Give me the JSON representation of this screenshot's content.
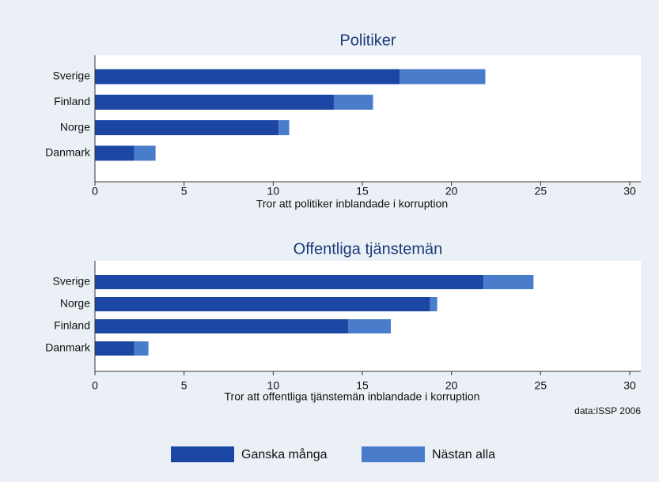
{
  "chart_data": [
    {
      "type": "bar",
      "orientation": "horizontal",
      "stacked": true,
      "title": "Politiker",
      "xlabel": "Tror att politiker inblandade i korruption",
      "categories": [
        "Sverige",
        "Finland",
        "Norge",
        "Danmark"
      ],
      "series": [
        {
          "name": "Ganska många",
          "color": "#1c46a3",
          "values": [
            17.1,
            13.4,
            10.3,
            2.2
          ]
        },
        {
          "name": "Nästan alla",
          "color": "#4a7ccc",
          "values": [
            4.8,
            2.2,
            0.6,
            1.2
          ]
        }
      ],
      "xlim": [
        0,
        30
      ],
      "xticks": [
        0,
        5,
        10,
        15,
        20,
        25,
        30
      ]
    },
    {
      "type": "bar",
      "orientation": "horizontal",
      "stacked": true,
      "title": "Offentliga tjänstemän",
      "xlabel": "Tror att offentliga tjänstemän inblandade i korruption",
      "categories": [
        "Sverige",
        "Norge",
        "Finland",
        "Danmark"
      ],
      "series": [
        {
          "name": "Ganska många",
          "color": "#1c46a3",
          "values": [
            21.8,
            18.8,
            14.2,
            2.2
          ]
        },
        {
          "name": "Nästan alla",
          "color": "#4a7ccc",
          "values": [
            2.8,
            0.4,
            2.4,
            0.8
          ]
        }
      ],
      "xlim": [
        0,
        30
      ],
      "xticks": [
        0,
        5,
        10,
        15,
        20,
        25,
        30
      ]
    }
  ],
  "source": "data:ISSP 2006"
}
